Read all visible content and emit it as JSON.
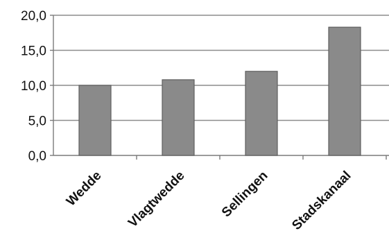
{
  "chart_data": {
    "type": "bar",
    "categories": [
      "Wedde",
      "Vlagtwedde",
      "Sellingen",
      "Stadskanaal"
    ],
    "values": [
      10.0,
      10.8,
      12.0,
      18.3
    ],
    "ylim": [
      0,
      20
    ],
    "yticks": [
      "0,0",
      "5,0",
      "10,0",
      "15,0",
      "20,0"
    ],
    "ytick_values": [
      0,
      5,
      10,
      15,
      20
    ],
    "grid": true,
    "title": "",
    "xlabel": "",
    "ylabel": "",
    "colors": {
      "bar_fill": "#8a8a8a",
      "bar_stroke": "#5e5e5e",
      "grid": "#8c8c8c",
      "axis": "#7a7a7a"
    }
  }
}
